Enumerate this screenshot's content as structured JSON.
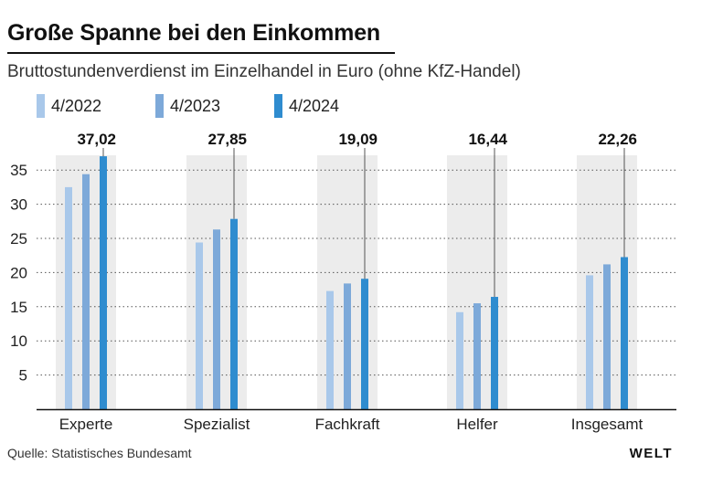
{
  "title": "Große Spanne bei den Einkommen",
  "subtitle": "Bruttostundenverdienst im Einzelhandel in Euro (ohne KfZ-Handel)",
  "source": "Quelle: Statistisches Bundesamt",
  "brand": "WELT",
  "colors": {
    "series": [
      "#a9c8ea",
      "#7da9d9",
      "#2f8ccf"
    ],
    "background_band": "#ececec",
    "grid": "#555555"
  },
  "chart_data": {
    "type": "bar",
    "categories": [
      "Experte",
      "Spezialist",
      "Fachkraft",
      "Helfer",
      "Insgesamt"
    ],
    "series": [
      {
        "name": "4/2022",
        "values": [
          32.5,
          24.4,
          17.3,
          14.2,
          19.6
        ]
      },
      {
        "name": "4/2023",
        "values": [
          34.4,
          26.3,
          18.4,
          15.5,
          21.2
        ]
      },
      {
        "name": "4/2024",
        "values": [
          37.02,
          27.85,
          19.09,
          16.44,
          22.26
        ]
      }
    ],
    "value_labels": [
      "37,02",
      "27,85",
      "19,09",
      "16,44",
      "22,26"
    ],
    "yticks": [
      5,
      10,
      15,
      20,
      25,
      30,
      35
    ],
    "ylim": [
      0,
      40
    ],
    "grid": "dotted horizontal",
    "legend_position": "top-left"
  }
}
